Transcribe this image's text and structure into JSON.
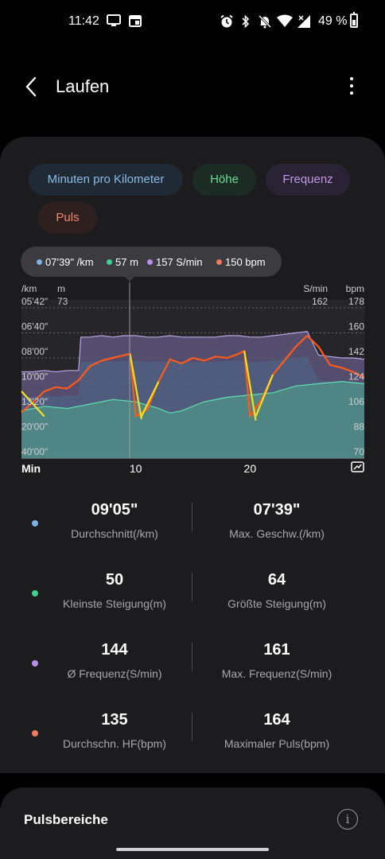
{
  "status_bar": {
    "time": "11:42",
    "battery": "49 %",
    "icons": [
      "screen-cast-icon",
      "calendar-icon",
      "alarm-icon",
      "bluetooth-icon",
      "mute-icon",
      "wifi-icon",
      "signal-icon"
    ]
  },
  "header": {
    "title": "Laufen",
    "back_icon": "back-arrow-icon",
    "more_icon": "more-vertical-icon"
  },
  "filters": {
    "pace": "Minuten pro Kilometer",
    "height": "Höhe",
    "frequency": "Frequenz",
    "pulse": "Puls"
  },
  "tooltip": {
    "pace": "07'39\" /km",
    "height": "57 m",
    "frequency": "157 S/min",
    "pulse": "150 bpm"
  },
  "colors": {
    "pace": "#7fb3e3",
    "height": "#3ed190",
    "frequency": "#b98ee8",
    "pulse": "#f07a5e",
    "pulse_line": "#ff5a1a",
    "pace_line": "#f5e020"
  },
  "chart_data": {
    "type": "area",
    "x_label": "Min",
    "x_ticks": [
      "10",
      "20"
    ],
    "units": {
      "pace": "/km",
      "height": "m",
      "frequency": "S/min",
      "pulse": "bpm"
    },
    "pace_ticks": [
      "05'42\"",
      "06'40\"",
      "08'00\"",
      "10'00\"",
      "13'20\"",
      "20'00\"",
      "40'00\""
    ],
    "height_tick": "73",
    "frequency_tick": "162",
    "pulse_ticks": [
      "178",
      "160",
      "142",
      "124",
      "106",
      "88",
      "70"
    ],
    "x_range_min": [
      0,
      30
    ],
    "pulse_range": [
      70,
      178
    ],
    "series": [
      {
        "name": "Frequenz",
        "x": [
          0,
          1,
          2,
          3,
          4,
          5,
          5.2,
          6,
          7,
          8,
          9,
          10,
          11,
          12,
          13,
          14,
          15,
          16,
          17,
          18,
          19,
          20,
          21,
          22,
          23,
          24,
          25,
          26,
          27,
          28,
          29,
          30
        ],
        "values": [
          132,
          132,
          133,
          132,
          133,
          133,
          157,
          157,
          158,
          157,
          158,
          158,
          157,
          157,
          158,
          157,
          157,
          157,
          157,
          158,
          158,
          157,
          157,
          158,
          159,
          160,
          161,
          144,
          143,
          142,
          142,
          141
        ]
      },
      {
        "name": "Puls",
        "x": [
          0,
          1,
          2,
          3,
          4,
          5,
          6,
          7,
          8,
          9,
          9.5,
          10,
          11,
          12,
          13,
          14,
          15,
          16,
          17,
          18,
          19,
          19.5,
          20,
          21,
          22,
          23,
          24,
          25,
          26,
          27,
          28,
          29,
          30
        ],
        "values": [
          103,
          110,
          118,
          121,
          120,
          126,
          136,
          140,
          142,
          144,
          145,
          100,
          105,
          125,
          141,
          138,
          142,
          140,
          143,
          142,
          145,
          147,
          100,
          112,
          130,
          140,
          150,
          158,
          150,
          137,
          135,
          132,
          128
        ]
      },
      {
        "name": "Höhe",
        "x": [
          0,
          2,
          4,
          6,
          8,
          10,
          12,
          13,
          14,
          15,
          16,
          18,
          20,
          22,
          24,
          26,
          28,
          30
        ],
        "values": [
          51,
          53,
          52,
          54,
          56,
          55,
          52,
          50,
          51,
          53,
          55,
          57,
          58,
          59,
          62,
          63,
          64,
          63
        ]
      }
    ]
  },
  "stats": [
    {
      "left_value": "09'05\"",
      "left_label": "Durchschnitt(/km)",
      "right_value": "07'39\"",
      "right_label": "Max. Geschw.(/km)"
    },
    {
      "left_value": "50",
      "left_label": "Kleinste Steigung(m)",
      "right_value": "64",
      "right_label": "Größte Steigung(m)"
    },
    {
      "left_value": "144",
      "left_label": "Ø Frequenz(S/min)",
      "right_value": "161",
      "right_label": "Max. Frequenz(S/min)"
    },
    {
      "left_value": "135",
      "left_label": "Durchschn. HF(bpm)",
      "right_value": "164",
      "right_label": "Maximaler Puls(bpm)"
    }
  ],
  "zones": {
    "title": "Pulsbereiche",
    "info_icon": "info-icon"
  }
}
